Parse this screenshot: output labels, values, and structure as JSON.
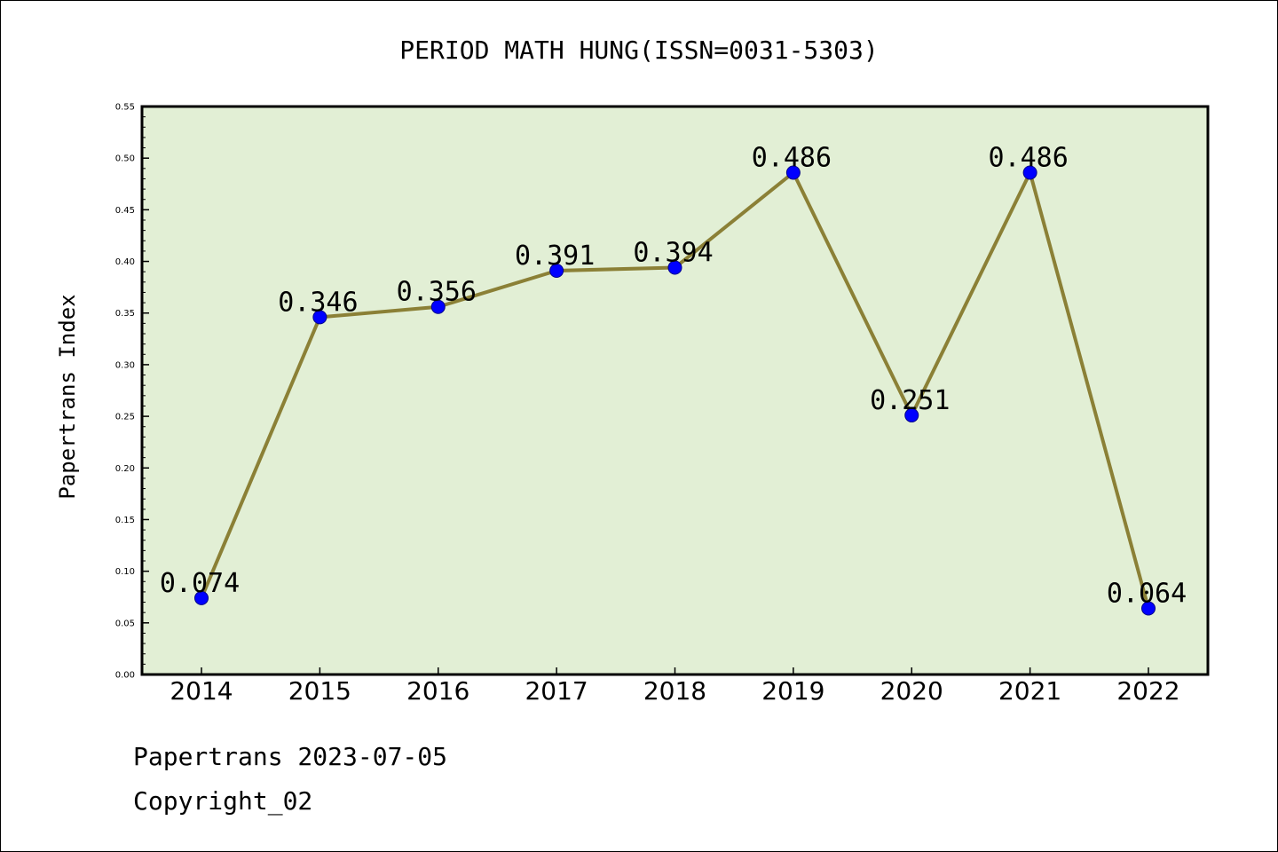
{
  "chart_data": {
    "type": "line",
    "title": "PERIOD MATH HUNG(ISSN=0031-5303)",
    "xlabel": "",
    "ylabel": "Papertrans Index",
    "categories": [
      "2014",
      "2015",
      "2016",
      "2017",
      "2018",
      "2019",
      "2020",
      "2021",
      "2022"
    ],
    "series": [
      {
        "values": [
          0.074,
          0.346,
          0.356,
          0.391,
          0.394,
          0.486,
          0.251,
          0.486,
          0.064
        ],
        "labels": [
          "0.074",
          "0.346",
          "0.356",
          "0.391",
          "0.394",
          "0.486",
          "0.251",
          "0.486",
          "0.064"
        ]
      }
    ],
    "ylim": [
      0,
      0.55
    ],
    "yticks": [
      "0.00",
      "0.05",
      "0.10",
      "0.15",
      "0.20",
      "0.25",
      "0.30",
      "0.35",
      "0.40",
      "0.45",
      "0.50",
      "0.55"
    ],
    "grid": false,
    "legend": "none",
    "colors": {
      "plot_background": "#e2efd5",
      "line": "#8b8036",
      "marker": "#0000ff",
      "marker_edge": "#00008b",
      "axes": "#000000"
    }
  },
  "footer": {
    "date_line": "Papertrans 2023-07-05",
    "copyright": "Copyright_02"
  }
}
